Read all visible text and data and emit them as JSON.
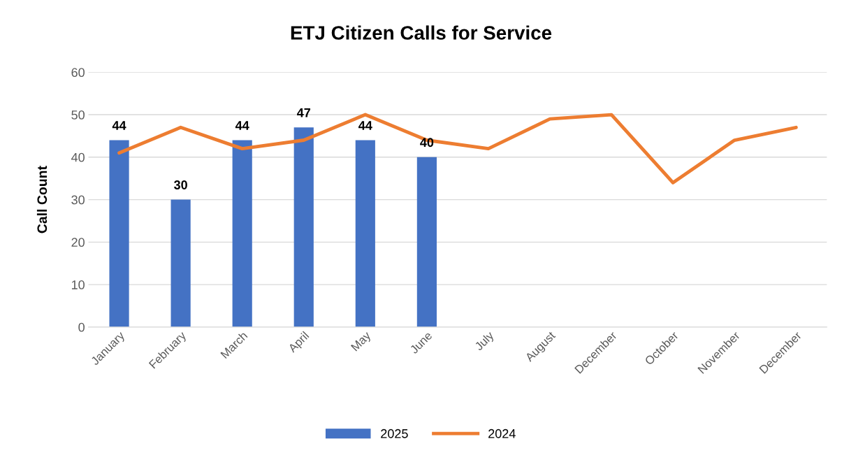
{
  "chart_data": {
    "type": "bar",
    "title": "ETJ Citizen Calls for Service",
    "ylabel": "Call Count",
    "categories": [
      "January",
      "February",
      "March",
      "April",
      "May",
      "June",
      "July",
      "August",
      "December",
      "October",
      "November",
      "December"
    ],
    "series": [
      {
        "name": "2025",
        "color": "#4472c4",
        "values": [
          44,
          30,
          44,
          47,
          44,
          40,
          null,
          null,
          null,
          null,
          null,
          null
        ],
        "value_labels": [
          "44",
          "30",
          "44",
          "47",
          "44",
          "40",
          null,
          null,
          null,
          null,
          null,
          null
        ]
      },
      {
        "name": "2024",
        "type": "line",
        "color": "#ed7d31",
        "values": [
          41,
          47,
          42,
          44,
          50,
          44,
          42,
          49,
          50,
          34,
          44,
          47
        ]
      }
    ],
    "ylim": [
      0,
      60
    ],
    "yticks": [
      0,
      10,
      20,
      30,
      40,
      50,
      60
    ],
    "grid": "y",
    "legend": "bottom",
    "marker": "none",
    "line_style": "solid"
  }
}
